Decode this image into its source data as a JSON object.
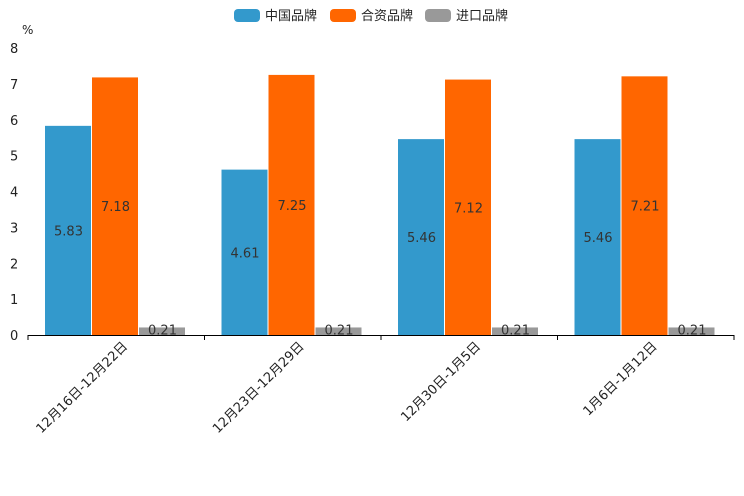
{
  "chart_data": {
    "type": "bar",
    "unit": "%",
    "categories": [
      "12月16日-12月22日",
      "12月23日-12月29日",
      "12月30日-1月5日",
      "1月6日-1月12日"
    ],
    "series": [
      {
        "name": "中国品牌",
        "color": "#3399cc",
        "values": [
          5.83,
          4.61,
          5.46,
          5.46
        ],
        "labels": [
          "5.83",
          "4.61",
          "5.46",
          "5.46"
        ]
      },
      {
        "name": "合资品牌",
        "color": "#ff6600",
        "values": [
          7.18,
          7.25,
          7.12,
          7.21
        ],
        "labels": [
          "7.18",
          "7.25",
          "7.12",
          "7.21"
        ]
      },
      {
        "name": "进口品牌",
        "color": "#999999",
        "values": [
          0.21,
          0.21,
          0.21,
          0.21
        ],
        "labels": [
          "0.21",
          "0.21",
          "0.21",
          "0.21"
        ]
      }
    ],
    "ylim": [
      0,
      8
    ],
    "yticks": [
      "0",
      "1",
      "2",
      "3",
      "4",
      "5",
      "6",
      "7",
      "8"
    ],
    "legend_position": "top-center",
    "grid": false
  }
}
